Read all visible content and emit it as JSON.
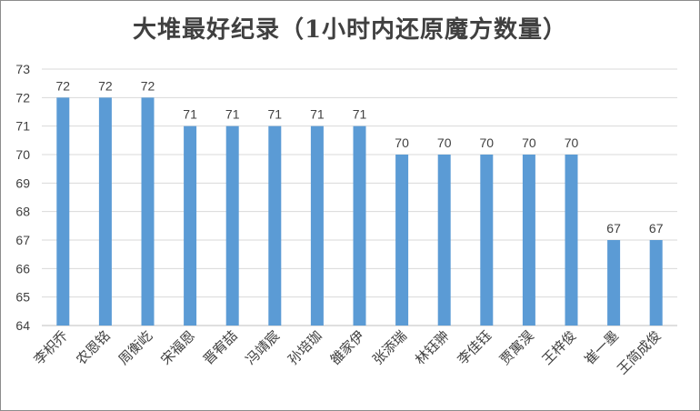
{
  "chart_data": {
    "type": "bar",
    "title": "大堆最好纪录（1小时内还原魔方数量）",
    "categories": [
      "李枳乔",
      "农恩铭",
      "周衡屹",
      "宋福恩",
      "晋宥喆",
      "冯靖宸",
      "孙培珈",
      "雒家伊",
      "张添瑞",
      "林钰翀",
      "李佳钰",
      "贾寓淏",
      "王梓俊",
      "崔一墨",
      "王简成俊"
    ],
    "values": [
      72,
      72,
      72,
      71,
      71,
      71,
      71,
      71,
      70,
      70,
      70,
      70,
      70,
      67,
      67
    ],
    "data_labels": [
      "72",
      "72",
      "72",
      "71",
      "71",
      "71",
      "71",
      "71",
      "70",
      "70",
      "70",
      "70",
      "70",
      "67",
      "67"
    ],
    "xlabel": "",
    "ylabel": "",
    "ylim": [
      64,
      73
    ],
    "yticks": [
      "64",
      "65",
      "66",
      "67",
      "68",
      "69",
      "70",
      "71",
      "72",
      "73"
    ],
    "grid": true,
    "legend": "none",
    "colors": {
      "bar": "#5b9bd5",
      "grid": "#d9d9d9",
      "axis": "#bfbfbf",
      "text": "#404040"
    }
  }
}
